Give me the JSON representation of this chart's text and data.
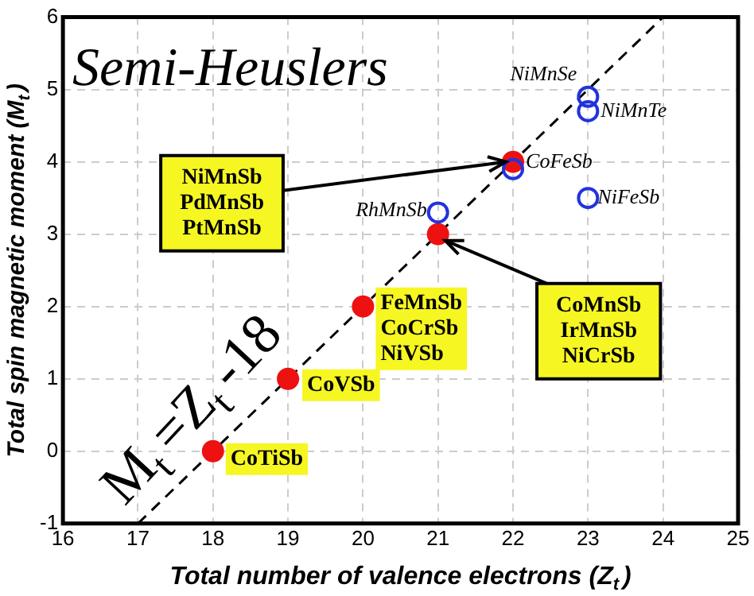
{
  "chart_data": {
    "type": "scatter",
    "xlabel": "Total number of valence electrons (Z$_{t}$)",
    "ylabel": "Total spin magnetic moment (M$_{t}$)",
    "xlim": [
      16,
      25
    ],
    "xticks": [
      16,
      17,
      18,
      19,
      20,
      21,
      22,
      23,
      24,
      25
    ],
    "ylim": [
      -1,
      6
    ],
    "yticks": [
      -1,
      0,
      1,
      2,
      3,
      4,
      5,
      6
    ],
    "grid": true,
    "legend": false,
    "series": [
      {
        "marker": "circle",
        "color": "#2233dd",
        "x": [
          21,
          22,
          23,
          23,
          23
        ],
        "values": [
          3.3,
          3.9,
          4.9,
          4.7,
          3.5
        ]
      },
      {
        "marker": "circle",
        "color": "#ee1111",
        "x": [
          18,
          19,
          20,
          21,
          22
        ],
        "values": [
          0,
          1,
          2,
          3,
          4
        ]
      },
      {
        "type": "line",
        "color": "#000000",
        "line_style": "dashed",
        "x": [
          17,
          24
        ],
        "values": [
          -1,
          6
        ]
      }
    ],
    "annotations": [
      "Semi-Heuslers",
      "M$_{t}$=Z$_{t}$-18",
      {
        "text": "NiMnSb\nPdMnSb\nPtMnSb",
        "x": 22,
        "y": 4
      },
      {
        "text": "CoMnSb\nIrMnSb\nNiCrSb",
        "x": 21,
        "y": 3
      },
      {
        "text": "FeMnSb\nCoCrSb\nNiVSb",
        "x": 20,
        "y": 2
      },
      {
        "text": "CoVSb",
        "x": 19,
        "y": 1
      },
      {
        "text": "CoTiSb",
        "x": 18,
        "y": 0
      },
      {
        "text": "CoFeSb",
        "x": 22,
        "y": 4
      },
      {
        "text": "NiMnSe",
        "x": 23,
        "y": 4.9
      },
      {
        "text": "NiMnTe",
        "x": 23,
        "y": 4.7
      },
      {
        "text": "NiFeSb",
        "x": 23,
        "y": 3.5
      },
      {
        "text": "RhMnSb",
        "x": 21,
        "y": 3.3
      }
    ]
  }
}
